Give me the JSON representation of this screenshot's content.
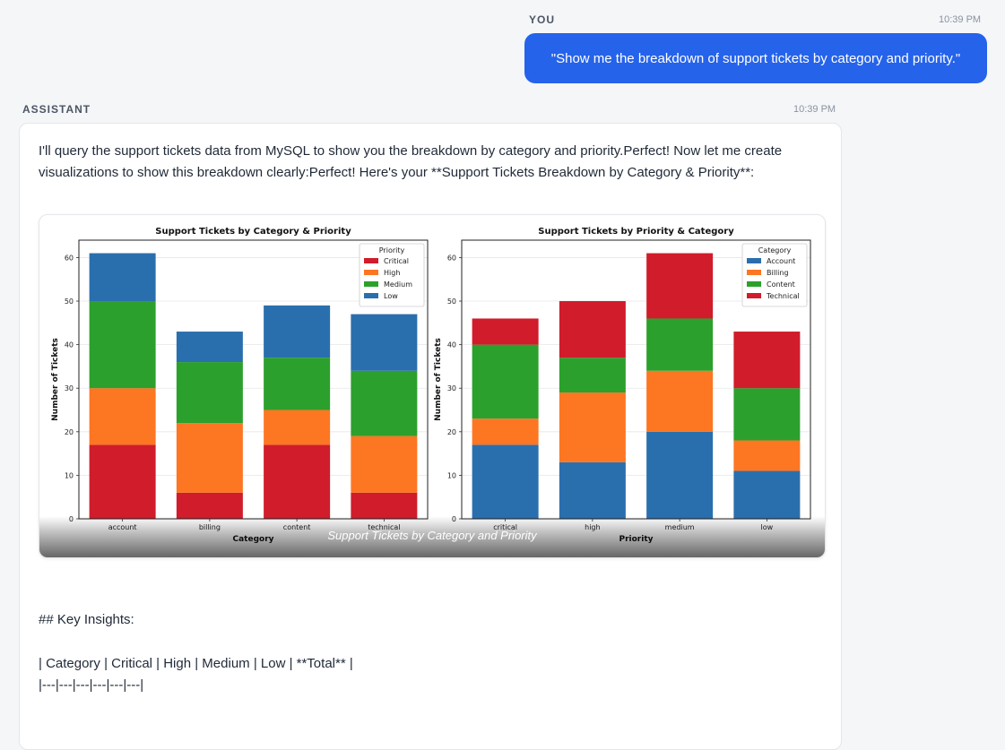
{
  "user": {
    "role_label": "YOU",
    "time": "10:39 PM",
    "message": "\"Show me the breakdown of support tickets by category and priority.\""
  },
  "assistant": {
    "role_label": "ASSISTANT",
    "time": "10:39 PM",
    "intro": "I'll query the support tickets data from MySQL to show you the breakdown by category and priority.Perfect! Now let me create visualizations to show this breakdown clearly:Perfect! Here's your **Support Tickets Breakdown by Category & Priority**:",
    "image_caption": "Support Tickets by Category and Priority",
    "heading": "## Key Insights:",
    "table_header": "| Category | Critical | High | Medium | Low | **Total** |",
    "table_separator": "|---|---|---|---|---|---|"
  },
  "colors": {
    "critical": "#d01c2b",
    "high": "#fd7622",
    "medium": "#2ca02c",
    "low": "#2a6fad",
    "account": "#2a6fad",
    "billing": "#fd7622",
    "content": "#2ca02c",
    "technical": "#d01c2b"
  },
  "chart_data": [
    {
      "type": "bar",
      "stacked": true,
      "title": "Support Tickets by Category & Priority",
      "xlabel": "Category",
      "ylabel": "Number of Tickets",
      "ylim": [
        0,
        64
      ],
      "yticks": [
        0,
        10,
        20,
        30,
        40,
        50,
        60
      ],
      "categories": [
        "account",
        "billing",
        "content",
        "technical"
      ],
      "legend_title": "Priority",
      "legend_position": "top-right",
      "series": [
        {
          "name": "Critical",
          "color_key": "critical",
          "values": [
            17,
            6,
            17,
            6
          ]
        },
        {
          "name": "High",
          "color_key": "high",
          "values": [
            13,
            16,
            8,
            13
          ]
        },
        {
          "name": "Medium",
          "color_key": "medium",
          "values": [
            20,
            14,
            12,
            15
          ]
        },
        {
          "name": "Low",
          "color_key": "low",
          "values": [
            11,
            7,
            12,
            13
          ]
        }
      ]
    },
    {
      "type": "bar",
      "stacked": true,
      "title": "Support Tickets by Priority & Category",
      "xlabel": "Priority",
      "ylabel": "Number of Tickets",
      "ylim": [
        0,
        64
      ],
      "yticks": [
        0,
        10,
        20,
        30,
        40,
        50,
        60
      ],
      "categories": [
        "critical",
        "high",
        "medium",
        "low"
      ],
      "legend_title": "Category",
      "legend_position": "top-right",
      "series": [
        {
          "name": "Account",
          "color_key": "account",
          "values": [
            17,
            13,
            20,
            11
          ]
        },
        {
          "name": "Billing",
          "color_key": "billing",
          "values": [
            6,
            16,
            14,
            7
          ]
        },
        {
          "name": "Content",
          "color_key": "content",
          "values": [
            17,
            8,
            12,
            12
          ]
        },
        {
          "name": "Technical",
          "color_key": "technical",
          "values": [
            6,
            13,
            15,
            13
          ]
        }
      ]
    }
  ]
}
